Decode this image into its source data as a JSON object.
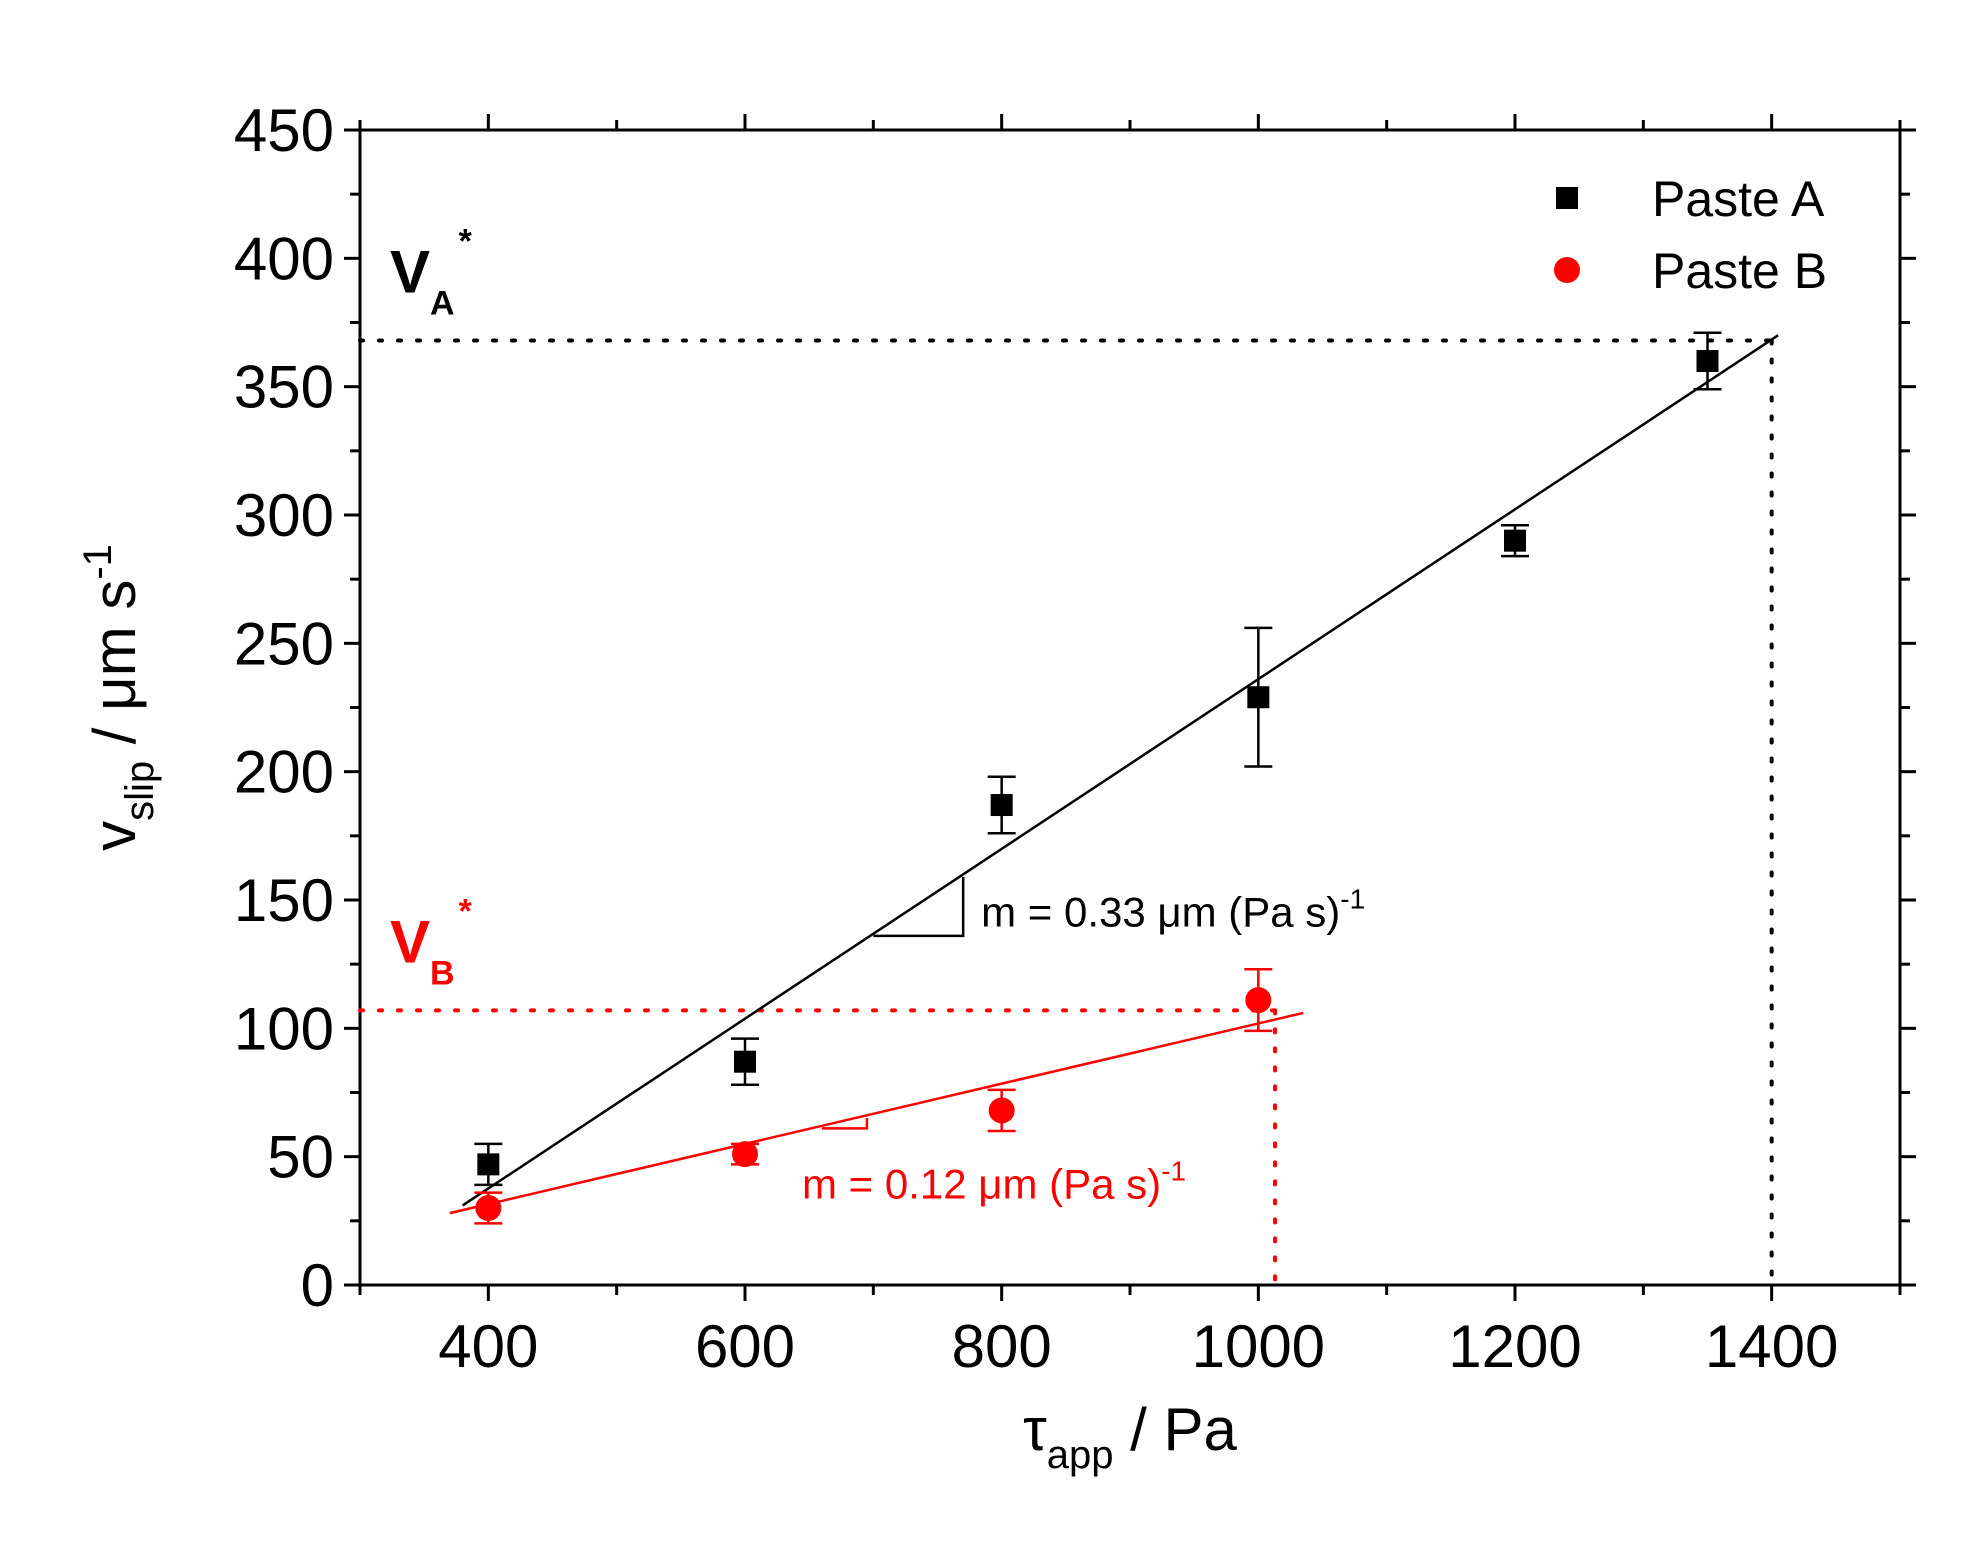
{
  "chart_data": {
    "type": "scatter",
    "title": "",
    "xlabel": {
      "main": "τ",
      "sub": "app",
      "rest": " / Pa"
    },
    "ylabel": {
      "main": "v",
      "sub": "slip",
      "rest": " / μm s",
      "sup": "-1"
    },
    "xlim": [
      300,
      1500
    ],
    "ylim": [
      0,
      450
    ],
    "x_ticks": [
      400,
      600,
      800,
      1000,
      1200,
      1400
    ],
    "x_tick_labels": [
      "400",
      "600",
      "800",
      "1000",
      "1200",
      "1400"
    ],
    "y_ticks": [
      0,
      50,
      100,
      150,
      200,
      250,
      300,
      350,
      400,
      450
    ],
    "y_tick_labels": [
      "0",
      "50",
      "100",
      "150",
      "200",
      "250",
      "300",
      "350",
      "400",
      "450"
    ],
    "legend_position": "top-right",
    "series": [
      {
        "name": "Paste A",
        "color": "#000000",
        "marker": "square",
        "x": [
          400,
          600,
          800,
          1000,
          1200,
          1350
        ],
        "y": [
          47,
          87,
          187,
          229,
          290,
          360
        ],
        "err": [
          8,
          9,
          11,
          27,
          6,
          11
        ],
        "fit": {
          "x": [
            380,
            1405
          ],
          "y": [
            31,
            370
          ]
        },
        "fit_label": "m = 0.33 μm (Pa s)",
        "fit_label_sup": "-1",
        "slope_triangle": {
          "x0": 700,
          "x1": 770,
          "y0": 136,
          "y1": 159
        }
      },
      {
        "name": "Paste B",
        "color": "#ff0000",
        "marker": "circle",
        "x": [
          400,
          600,
          800,
          1000
        ],
        "y": [
          30,
          51,
          68,
          111
        ],
        "err": [
          6,
          4,
          8,
          12
        ],
        "fit": {
          "x": [
            370,
            1035
          ],
          "y": [
            28,
            106
          ]
        },
        "fit_label": "m = 0.12 μm (Pa s)",
        "fit_label_sup": "-1",
        "slope_triangle": {
          "x0": 660,
          "x1": 695,
          "y0": 61,
          "y1": 65
        }
      }
    ],
    "reference_lines": [
      {
        "label": "V",
        "sub": "A",
        "sup": "*",
        "color": "#000000",
        "y": 368,
        "x": 1400
      },
      {
        "label": "V",
        "sub": "B",
        "sup": "*",
        "color": "#ff0000",
        "y": 107,
        "x": 1013
      }
    ]
  }
}
